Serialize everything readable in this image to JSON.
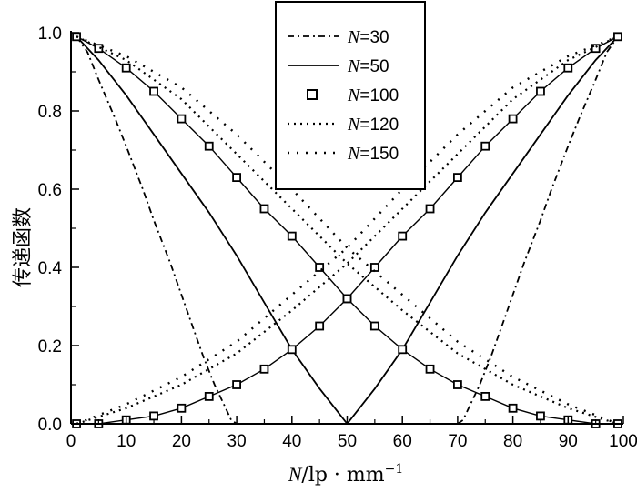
{
  "chart_data": {
    "type": "line",
    "title": "",
    "xlabel_symbol": "N",
    "xlabel_unit": "/lp · mm",
    "xlabel_exponent": "−1",
    "ylabel": "传递函数",
    "xlim": [
      0,
      100
    ],
    "ylim": [
      0,
      1.0
    ],
    "xticks": [
      0,
      10,
      20,
      30,
      40,
      50,
      60,
      70,
      80,
      90,
      100
    ],
    "yticks": [
      0.0,
      0.2,
      0.4,
      0.6,
      0.8,
      1.0
    ],
    "x_tick_labels": [
      "0",
      "10",
      "20",
      "30",
      "40",
      "50",
      "60",
      "70",
      "80",
      "90",
      "100"
    ],
    "y_tick_labels": [
      "0.0",
      "0.2",
      "0.4",
      "0.6",
      "0.8",
      "1.0"
    ],
    "grid": false,
    "legend_position": "top-center",
    "series": [
      {
        "name": "30",
        "style": "dash-dot",
        "descending": [
          [
            1,
            0.99
          ],
          [
            3,
            0.95
          ],
          [
            5,
            0.88
          ],
          [
            8,
            0.78
          ],
          [
            10,
            0.71
          ],
          [
            13,
            0.6
          ],
          [
            15,
            0.52
          ],
          [
            18,
            0.41
          ],
          [
            20,
            0.33
          ],
          [
            22,
            0.25
          ],
          [
            24,
            0.17
          ],
          [
            26,
            0.1
          ],
          [
            28,
            0.04
          ],
          [
            29,
            0.01
          ],
          [
            30,
            0.0
          ]
        ],
        "ascending": [
          [
            70,
            0.0
          ],
          [
            71,
            0.01
          ],
          [
            72,
            0.04
          ],
          [
            74,
            0.1
          ],
          [
            76,
            0.17
          ],
          [
            78,
            0.25
          ],
          [
            80,
            0.33
          ],
          [
            82,
            0.41
          ],
          [
            85,
            0.52
          ],
          [
            87,
            0.6
          ],
          [
            90,
            0.71
          ],
          [
            92,
            0.78
          ],
          [
            95,
            0.88
          ],
          [
            97,
            0.95
          ],
          [
            99,
            0.99
          ]
        ]
      },
      {
        "name": "50",
        "style": "solid",
        "descending": [
          [
            1,
            0.99
          ],
          [
            5,
            0.93
          ],
          [
            10,
            0.84
          ],
          [
            15,
            0.74
          ],
          [
            20,
            0.64
          ],
          [
            25,
            0.54
          ],
          [
            30,
            0.43
          ],
          [
            35,
            0.31
          ],
          [
            40,
            0.19
          ],
          [
            45,
            0.09
          ],
          [
            50,
            0.0
          ]
        ],
        "ascending": [
          [
            50,
            0.0
          ],
          [
            55,
            0.09
          ],
          [
            60,
            0.19
          ],
          [
            65,
            0.31
          ],
          [
            70,
            0.43
          ],
          [
            75,
            0.54
          ],
          [
            80,
            0.64
          ],
          [
            85,
            0.74
          ],
          [
            90,
            0.84
          ],
          [
            95,
            0.93
          ],
          [
            99,
            0.99
          ]
        ]
      },
      {
        "name": "100",
        "style": "square-marker",
        "descending": [
          [
            1,
            0.99
          ],
          [
            5,
            0.96
          ],
          [
            10,
            0.91
          ],
          [
            15,
            0.85
          ],
          [
            20,
            0.78
          ],
          [
            25,
            0.71
          ],
          [
            30,
            0.63
          ],
          [
            35,
            0.55
          ],
          [
            40,
            0.48
          ],
          [
            45,
            0.4
          ],
          [
            50,
            0.32
          ],
          [
            55,
            0.25
          ],
          [
            60,
            0.19
          ],
          [
            65,
            0.14
          ],
          [
            70,
            0.1
          ],
          [
            75,
            0.07
          ],
          [
            80,
            0.04
          ],
          [
            85,
            0.02
          ],
          [
            90,
            0.01
          ],
          [
            95,
            0.0
          ],
          [
            99,
            0.0
          ]
        ],
        "ascending": [
          [
            1,
            0.0
          ],
          [
            5,
            0.0
          ],
          [
            10,
            0.01
          ],
          [
            15,
            0.02
          ],
          [
            20,
            0.04
          ],
          [
            25,
            0.07
          ],
          [
            30,
            0.1
          ],
          [
            35,
            0.14
          ],
          [
            40,
            0.19
          ],
          [
            45,
            0.25
          ],
          [
            50,
            0.32
          ],
          [
            55,
            0.4
          ],
          [
            60,
            0.48
          ],
          [
            65,
            0.55
          ],
          [
            70,
            0.63
          ],
          [
            75,
            0.71
          ],
          [
            80,
            0.78
          ],
          [
            85,
            0.85
          ],
          [
            90,
            0.91
          ],
          [
            95,
            0.96
          ],
          [
            99,
            0.99
          ]
        ]
      },
      {
        "name": "120",
        "style": "dotted",
        "descending": [
          [
            1,
            0.99
          ],
          [
            10,
            0.93
          ],
          [
            20,
            0.83
          ],
          [
            30,
            0.69
          ],
          [
            40,
            0.55
          ],
          [
            50,
            0.41
          ],
          [
            60,
            0.29
          ],
          [
            70,
            0.18
          ],
          [
            80,
            0.1
          ],
          [
            90,
            0.04
          ],
          [
            99,
            0.0
          ]
        ],
        "ascending": [
          [
            1,
            0.0
          ],
          [
            10,
            0.04
          ],
          [
            20,
            0.1
          ],
          [
            30,
            0.18
          ],
          [
            40,
            0.29
          ],
          [
            50,
            0.41
          ],
          [
            60,
            0.55
          ],
          [
            70,
            0.69
          ],
          [
            80,
            0.83
          ],
          [
            90,
            0.93
          ],
          [
            99,
            0.99
          ]
        ]
      },
      {
        "name": "150",
        "style": "sparse-dot",
        "descending": [
          [
            1,
            0.99
          ],
          [
            10,
            0.94
          ],
          [
            20,
            0.86
          ],
          [
            30,
            0.74
          ],
          [
            40,
            0.6
          ],
          [
            50,
            0.45
          ],
          [
            60,
            0.33
          ],
          [
            70,
            0.21
          ],
          [
            80,
            0.12
          ],
          [
            90,
            0.05
          ],
          [
            99,
            0.0
          ]
        ],
        "ascending": [
          [
            1,
            0.0
          ],
          [
            10,
            0.05
          ],
          [
            20,
            0.12
          ],
          [
            30,
            0.21
          ],
          [
            40,
            0.33
          ],
          [
            50,
            0.45
          ],
          [
            60,
            0.6
          ],
          [
            70,
            0.74
          ],
          [
            80,
            0.86
          ],
          [
            90,
            0.94
          ],
          [
            99,
            0.99
          ]
        ]
      }
    ]
  }
}
